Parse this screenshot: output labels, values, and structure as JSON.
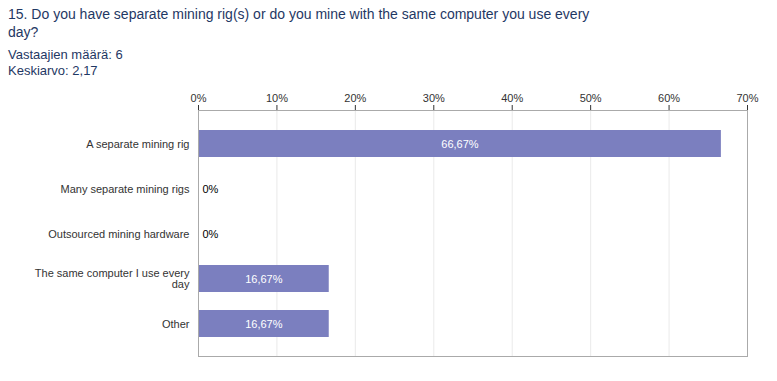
{
  "chart_data": {
    "type": "bar",
    "orientation": "horizontal",
    "title": "15. Do you have separate mining rig(s) or do you mine with the  same computer you use every\nday?",
    "subtitle": "Vastaajien määrä: 6\nKeskiarvo: 2,17",
    "categories": [
      "A separate mining rig",
      "Many separate mining rigs",
      "Outsourced mining hardware",
      "The same computer I use every\nday",
      "Other"
    ],
    "values": [
      66.67,
      0,
      0,
      16.67,
      16.67
    ],
    "value_labels": [
      "66,67%",
      "0%",
      "0%",
      "16,67%",
      "16,67%"
    ],
    "data_labels": true,
    "color": "#7b7fbf",
    "xlim": [
      0,
      70
    ],
    "xticks": [
      {
        "value": 0,
        "label": "0%"
      },
      {
        "value": 10,
        "label": "10%"
      },
      {
        "value": 20,
        "label": "20%"
      },
      {
        "value": 30,
        "label": "30%"
      },
      {
        "value": 40,
        "label": "40%"
      },
      {
        "value": 50,
        "label": "50%"
      },
      {
        "value": 60,
        "label": "60%"
      },
      {
        "value": 70,
        "label": "70%"
      }
    ],
    "grid": true
  }
}
